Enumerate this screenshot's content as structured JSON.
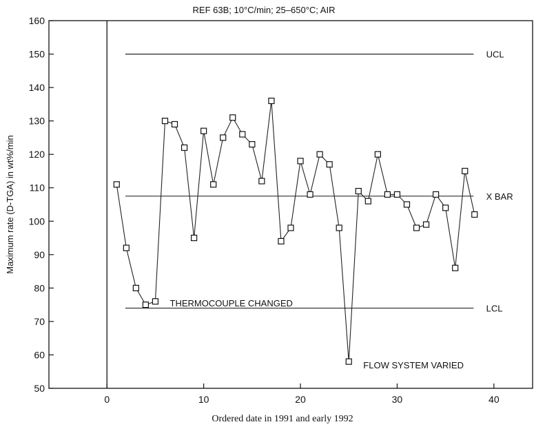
{
  "chart_data": {
    "type": "line",
    "title": "REF 63B; 10°C/min; 25–650°C; AIR",
    "xlabel": "Ordered date in 1991 and early 1992",
    "ylabel": "Maximum rate (D-TGA) in wt%/min",
    "xlim": [
      -6,
      44
    ],
    "ylim": [
      50,
      160
    ],
    "x_ticks": [
      0,
      10,
      20,
      30,
      40
    ],
    "y_ticks": [
      50,
      60,
      70,
      80,
      90,
      100,
      110,
      120,
      130,
      140,
      150,
      160
    ],
    "grid": false,
    "marker": "square",
    "series": [
      {
        "x": [
          1,
          2,
          3,
          4,
          5,
          6,
          7,
          8,
          9,
          10,
          11,
          12,
          13,
          14,
          15,
          16,
          17,
          18,
          19,
          20,
          21,
          22,
          23,
          24,
          25,
          26,
          27,
          28,
          29,
          30,
          31,
          32,
          33,
          34,
          35,
          36,
          37,
          38
        ],
        "values": [
          111,
          92,
          80,
          75,
          76,
          130,
          129,
          122,
          95,
          127,
          111,
          125,
          131,
          126,
          123,
          112,
          136,
          94,
          98,
          118,
          108,
          120,
          117,
          98,
          58,
          109,
          106,
          120,
          108,
          108,
          105,
          98,
          99,
          108,
          104,
          86,
          115,
          102
        ]
      }
    ],
    "reference_lines": [
      {
        "label": "UCL",
        "value": 150
      },
      {
        "label": "X BAR",
        "value": 107.5
      },
      {
        "label": "LCL",
        "value": 74
      }
    ],
    "annotations": [
      {
        "text": "THERMOCOUPLE CHANGED",
        "x": 6.5,
        "y": 75.5
      },
      {
        "text": "FLOW SYSTEM VARIED",
        "x": 26.5,
        "y": 57
      }
    ]
  }
}
